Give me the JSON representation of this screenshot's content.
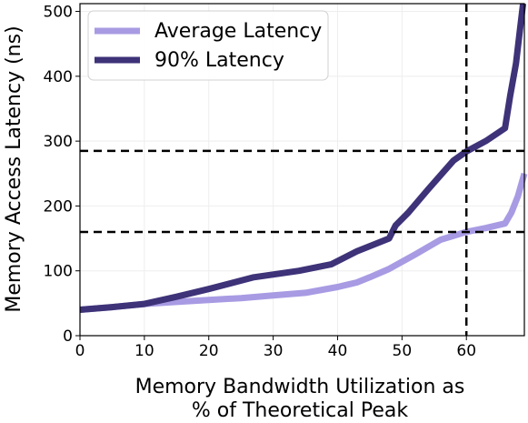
{
  "chart_data": {
    "type": "line",
    "title": "",
    "xlabel_lines": [
      "Memory Bandwidth Utilization as",
      "% of Theoretical Peak"
    ],
    "ylabel": "Memory Access Latency (ns)",
    "xlim": [
      0,
      69
    ],
    "ylim": [
      0,
      512
    ],
    "xticks": [
      0,
      10,
      20,
      30,
      40,
      50,
      60
    ],
    "yticks": [
      0,
      100,
      200,
      300,
      400,
      500
    ],
    "grid": true,
    "legend_position": "top-left",
    "series": [
      {
        "name": "Average Latency",
        "color": "#a89be3",
        "x": [
          0,
          5,
          10,
          15,
          20,
          25,
          30,
          35,
          40,
          43,
          45,
          48,
          52,
          56,
          60,
          63,
          66,
          67,
          68,
          69
        ],
        "y": [
          40,
          44,
          49,
          52,
          55,
          58,
          62,
          66,
          75,
          82,
          90,
          103,
          125,
          148,
          160,
          166,
          173,
          190,
          215,
          250
        ]
      },
      {
        "name": "90% Latency",
        "color": "#3e3278",
        "x": [
          0,
          5,
          10,
          15,
          20,
          27,
          34,
          39,
          43,
          48,
          49,
          51,
          54,
          58,
          60,
          63,
          66,
          66.8,
          67.7,
          68.3,
          68.8
        ],
        "y": [
          40,
          44,
          49,
          60,
          72,
          90,
          100,
          110,
          130,
          150,
          170,
          190,
          225,
          270,
          284,
          300,
          320,
          370,
          420,
          470,
          512
        ]
      }
    ],
    "reference_lines": {
      "horizontal": [
        285,
        160
      ],
      "vertical": [
        60
      ]
    }
  }
}
